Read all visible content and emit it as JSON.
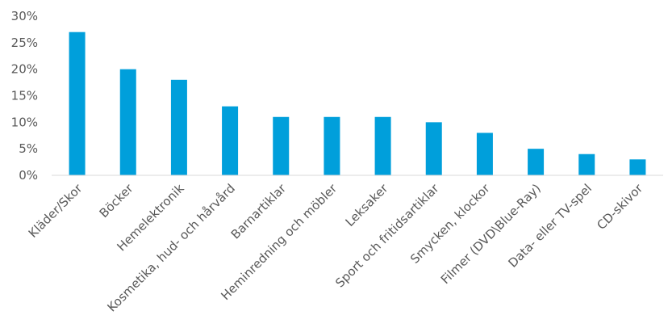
{
  "chart_data": {
    "type": "bar",
    "categories": [
      "Kläder/Skor",
      "Böcker",
      "Hemelektronik",
      "Kosmetika, hud- och hårvård",
      "Barnartiklar",
      "Heminredning och möbler",
      "Leksaker",
      "Sport och fritidsartiklar",
      "Smycken, klockor",
      "Filmer (DVD\\Blue-Ray)",
      "Data- eller TV-spel",
      "CD-skivor"
    ],
    "values": [
      27,
      20,
      18,
      13,
      11,
      11,
      11,
      10,
      8,
      5,
      4,
      3
    ],
    "ylim": [
      0,
      30
    ],
    "yticks": [
      "0%",
      "5%",
      "10%",
      "15%",
      "20%",
      "25%",
      "30%"
    ],
    "title": "",
    "xlabel": "",
    "ylabel": "",
    "grid": false,
    "legend": "none",
    "bar_color": "#009fdb",
    "axis_color": "#d9d9d9"
  }
}
